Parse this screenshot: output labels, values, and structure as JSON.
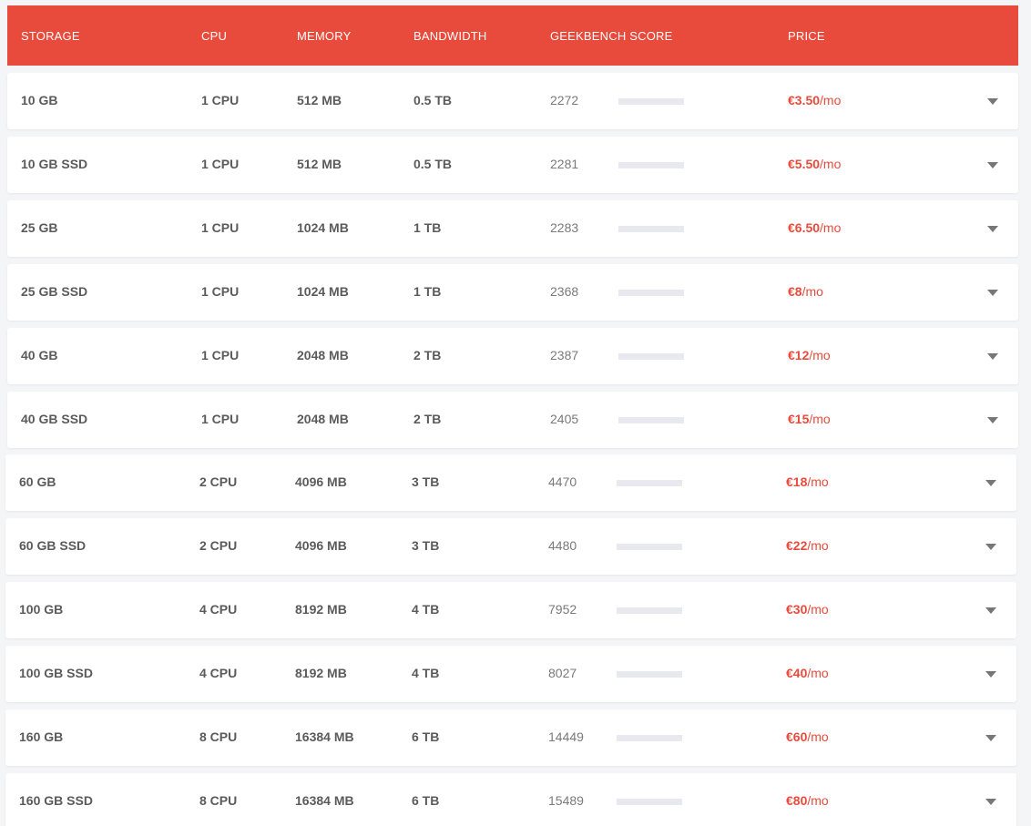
{
  "header": {
    "storage": "STORAGE",
    "cpu": "CPU",
    "memory": "MEMORY",
    "bandwidth": "BANDWIDTH",
    "geekbench": "GEEKBENCH SCORE",
    "price": "PRICE"
  },
  "price_unit": "/mo",
  "colors": {
    "accent": "#e84b3c",
    "row_bg": "#ffffff",
    "page_bg": "#f4f5f7",
    "bar_track": "#e7e9ee"
  },
  "icons": {
    "expand": "chevron-down-icon"
  },
  "plans": [
    {
      "storage": "10 GB",
      "cpu": "1 CPU",
      "memory": "512 MB",
      "bandwidth": "0.5 TB",
      "score": "2272",
      "price": "€3.50"
    },
    {
      "storage": "10 GB SSD",
      "cpu": "1 CPU",
      "memory": "512 MB",
      "bandwidth": "0.5 TB",
      "score": "2281",
      "price": "€5.50"
    },
    {
      "storage": "25 GB",
      "cpu": "1 CPU",
      "memory": "1024 MB",
      "bandwidth": "1 TB",
      "score": "2283",
      "price": "€6.50"
    },
    {
      "storage": "25 GB SSD",
      "cpu": "1 CPU",
      "memory": "1024 MB",
      "bandwidth": "1 TB",
      "score": "2368",
      "price": "€8"
    },
    {
      "storage": "40 GB",
      "cpu": "1 CPU",
      "memory": "2048 MB",
      "bandwidth": "2 TB",
      "score": "2387",
      "price": "€12"
    },
    {
      "storage": "40 GB SSD",
      "cpu": "1 CPU",
      "memory": "2048 MB",
      "bandwidth": "2 TB",
      "score": "2405",
      "price": "€15"
    },
    {
      "storage": "60 GB",
      "cpu": "2 CPU",
      "memory": "4096 MB",
      "bandwidth": "3 TB",
      "score": "4470",
      "price": "€18"
    },
    {
      "storage": "60 GB SSD",
      "cpu": "2 CPU",
      "memory": "4096 MB",
      "bandwidth": "3 TB",
      "score": "4480",
      "price": "€22"
    },
    {
      "storage": "100 GB",
      "cpu": "4 CPU",
      "memory": "8192 MB",
      "bandwidth": "4 TB",
      "score": "7952",
      "price": "€30"
    },
    {
      "storage": "100 GB SSD",
      "cpu": "4 CPU",
      "memory": "8192 MB",
      "bandwidth": "4 TB",
      "score": "8027",
      "price": "€40"
    },
    {
      "storage": "160 GB",
      "cpu": "8 CPU",
      "memory": "16384 MB",
      "bandwidth": "6 TB",
      "score": "14449",
      "price": "€60"
    },
    {
      "storage": "160 GB SSD",
      "cpu": "8 CPU",
      "memory": "16384 MB",
      "bandwidth": "6 TB",
      "score": "15489",
      "price": "€80"
    }
  ]
}
